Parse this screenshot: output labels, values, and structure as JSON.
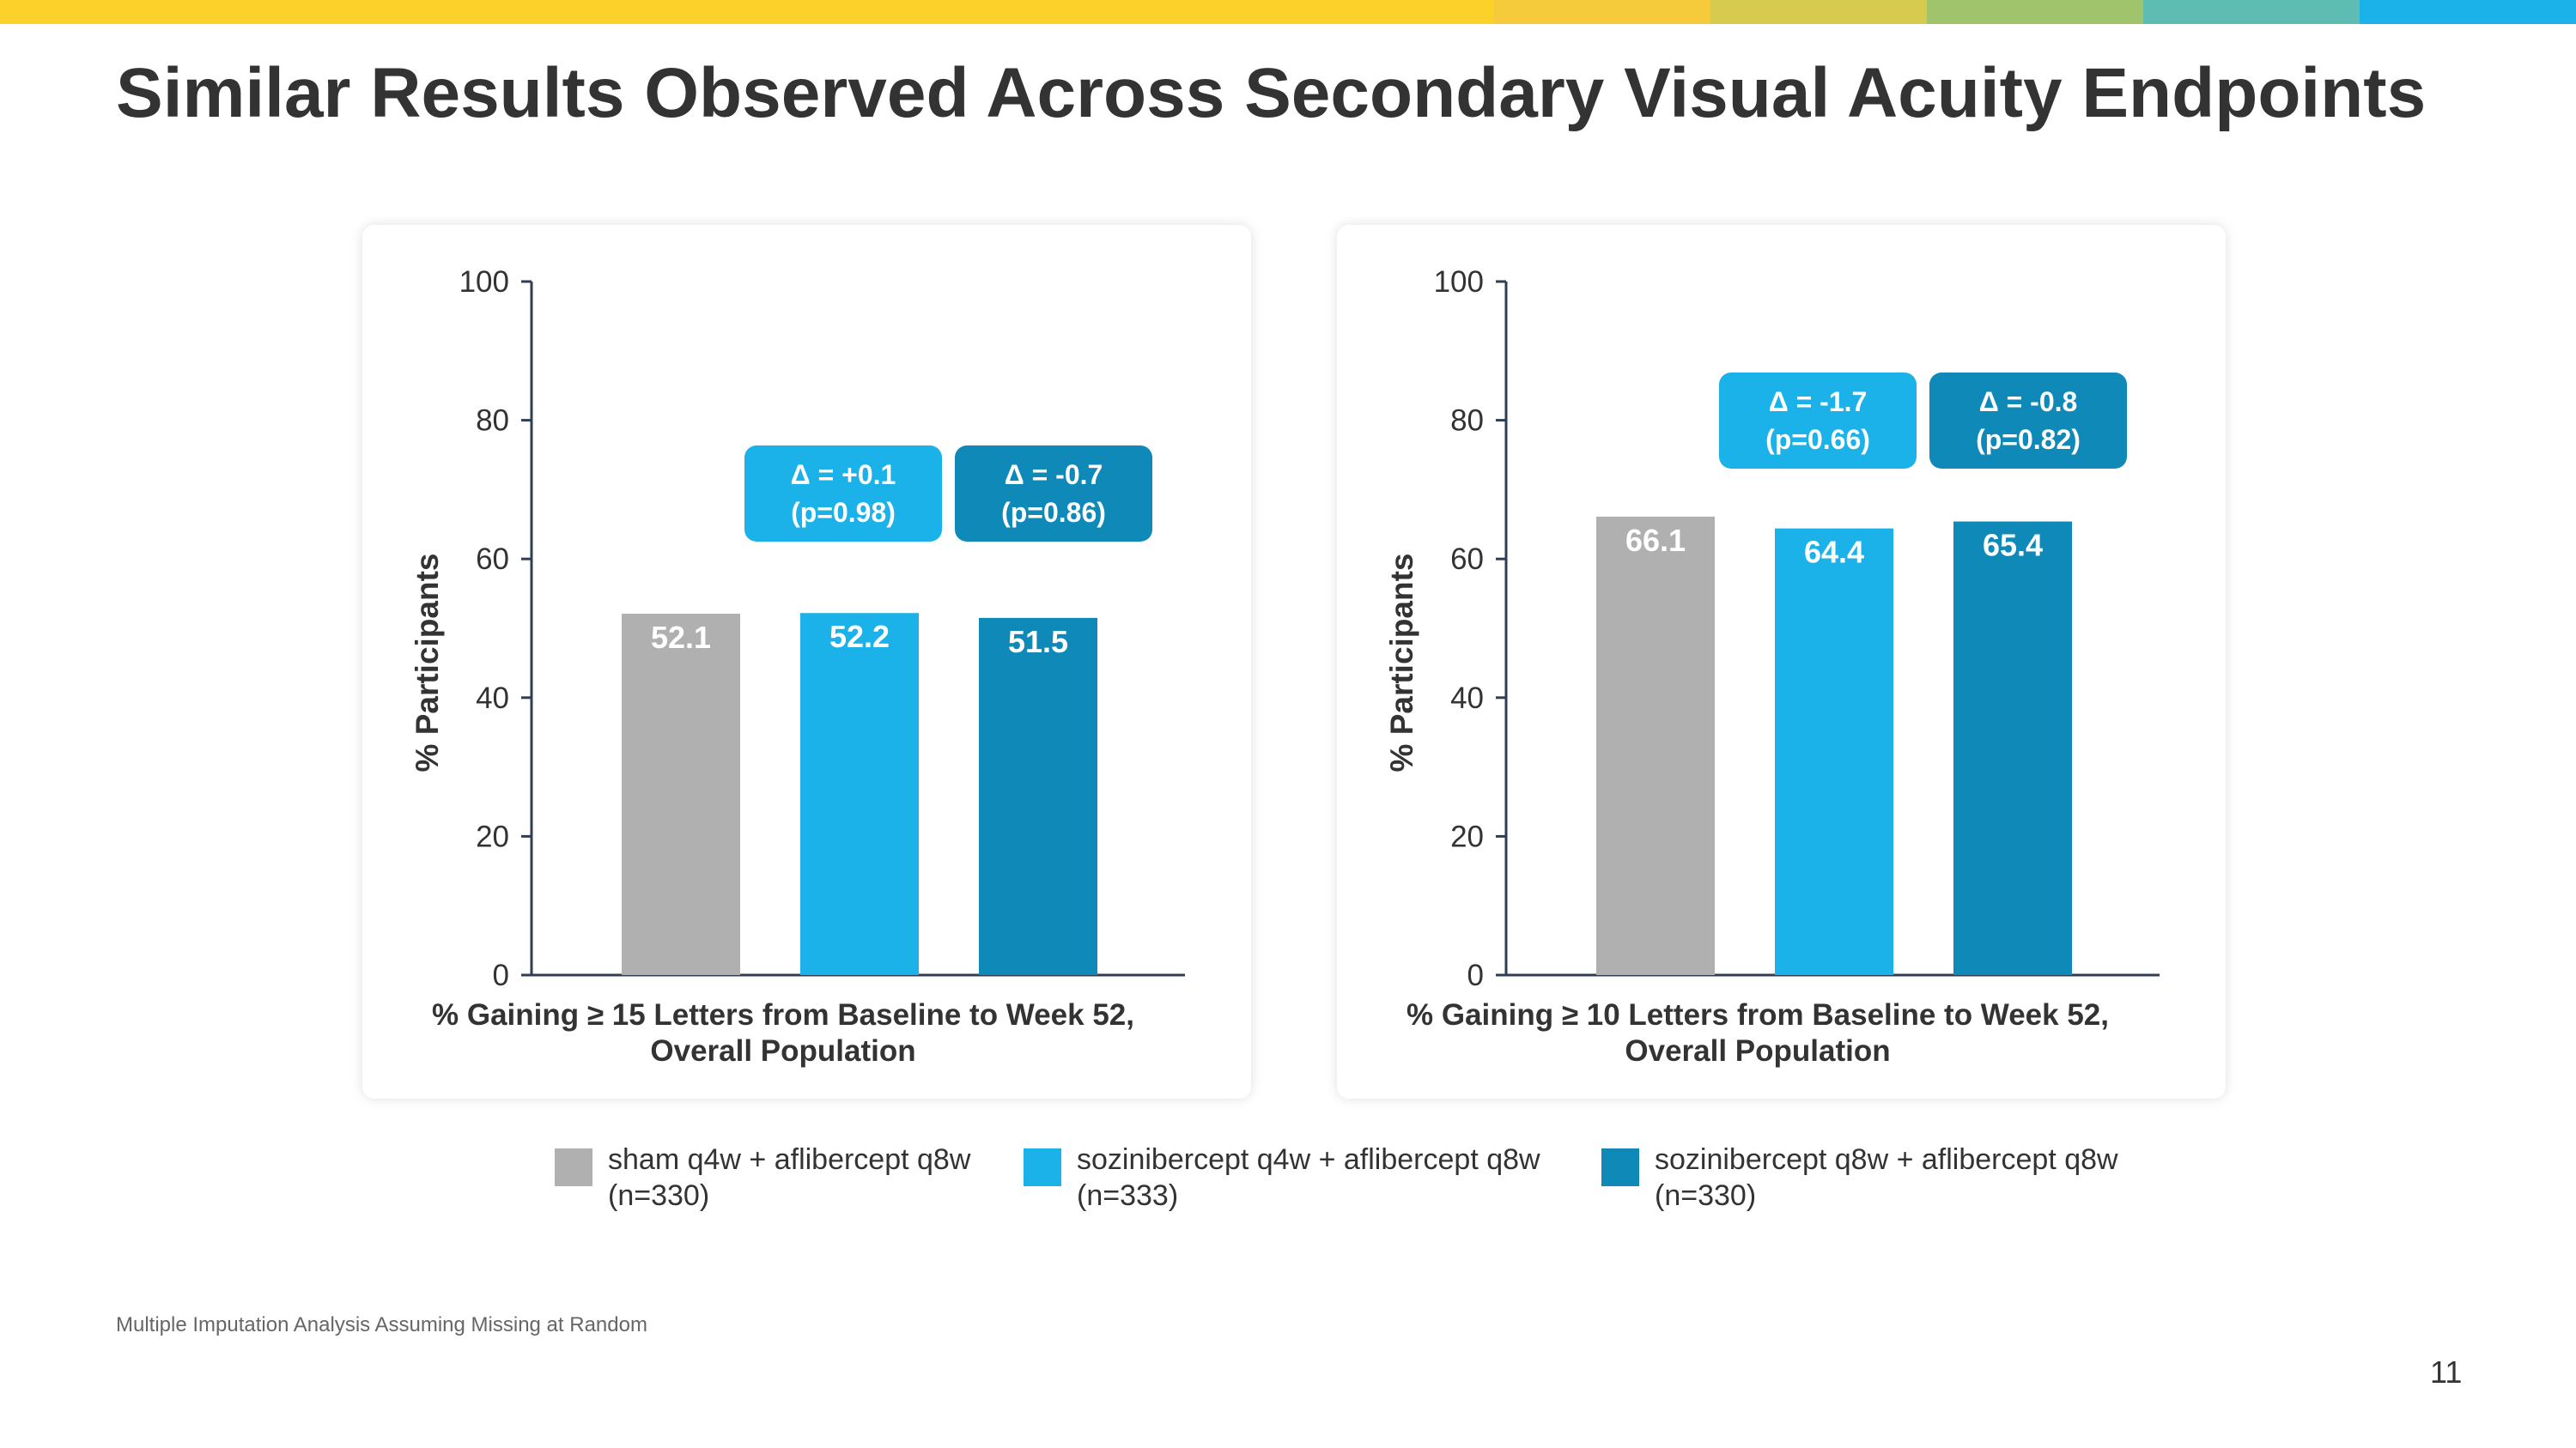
{
  "header": {
    "title": "Similar Results Observed Across Secondary Visual Acuity Endpoints",
    "stripe_colors": [
      "#FCD12A",
      "#F6CB3B",
      "#D6CB4F",
      "#9FC46B",
      "#5DBDB3",
      "#1AB2E8"
    ]
  },
  "chart_data": [
    {
      "type": "bar",
      "ylabel": "% Participants",
      "xlabel_line1": "% Gaining ≥ 15 Letters from Baseline to Week 52,",
      "xlabel_line2": "Overall Population",
      "ylim": [
        0,
        100
      ],
      "yticks": [
        "0",
        "20",
        "40",
        "60",
        "80",
        "100"
      ],
      "grid": false,
      "series": [
        {
          "name": "sham q4w + aflibercept q8w",
          "value": 52.1,
          "label": "52.1",
          "color": "#B0B0B0"
        },
        {
          "name": "sozinibercept q4w + aflibercept q8w",
          "value": 52.2,
          "label": "52.2",
          "color": "#1AB2E8"
        },
        {
          "name": "sozinibercept q8w + aflibercept q8w",
          "value": 51.5,
          "label": "51.5",
          "color": "#0E89B8"
        }
      ],
      "annotations": [
        {
          "line1": "Δ = +0.1",
          "line2": "(p=0.98)",
          "color": "#1AB2E8"
        },
        {
          "line1": "Δ = -0.7",
          "line2": "(p=0.86)",
          "color": "#0E89B8"
        }
      ]
    },
    {
      "type": "bar",
      "ylabel": "% Participants",
      "xlabel_line1": "% Gaining ≥ 10 Letters from Baseline to Week 52,",
      "xlabel_line2": "Overall Population",
      "ylim": [
        0,
        100
      ],
      "yticks": [
        "0",
        "20",
        "40",
        "60",
        "80",
        "100"
      ],
      "grid": false,
      "series": [
        {
          "name": "sham q4w + aflibercept q8w",
          "value": 66.1,
          "label": "66.1",
          "color": "#B0B0B0"
        },
        {
          "name": "sozinibercept q4w + aflibercept q8w",
          "value": 64.4,
          "label": "64.4",
          "color": "#1AB2E8"
        },
        {
          "name": "sozinibercept q8w + aflibercept q8w",
          "value": 65.4,
          "label": "65.4",
          "color": "#0E89B8"
        }
      ],
      "annotations": [
        {
          "line1": "Δ = -1.7",
          "line2": "(p=0.66)",
          "color": "#1AB2E8"
        },
        {
          "line1": "Δ = -0.8",
          "line2": "(p=0.82)",
          "color": "#0E89B8"
        }
      ]
    }
  ],
  "legend": [
    {
      "line1": "sham q4w + aflibercept q8w",
      "line2": "(n=330)",
      "color": "#B0B0B0"
    },
    {
      "line1": "sozinibercept q4w + aflibercept q8w",
      "line2": "(n=333)",
      "color": "#1AB2E8"
    },
    {
      "line1": "sozinibercept q8w + aflibercept q8w",
      "line2": "(n=330)",
      "color": "#0E89B8"
    }
  ],
  "footnote": "Multiple Imputation Analysis Assuming Missing at Random",
  "page_number": "11"
}
